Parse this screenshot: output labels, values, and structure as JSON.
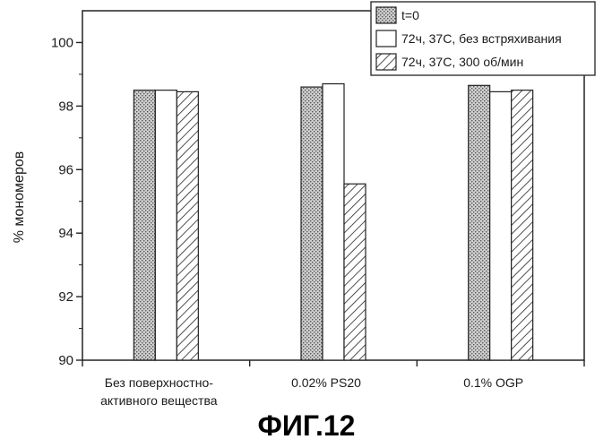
{
  "chart_data": {
    "type": "bar",
    "title": "",
    "xlabel": "",
    "ylabel": "% мономеров",
    "ylim": [
      90,
      101
    ],
    "yticks": [
      90,
      92,
      94,
      96,
      98,
      100
    ],
    "categories": [
      [
        "Без поверхностно-",
        "активного вещества"
      ],
      [
        "0.02% PS20"
      ],
      [
        "0.1% OGP"
      ]
    ],
    "series": [
      {
        "name": "t=0",
        "pattern": "dots",
        "values": [
          98.5,
          98.6,
          98.65
        ]
      },
      {
        "name": "72ч, 37С, без встряхивания",
        "pattern": "empty",
        "values": [
          98.5,
          98.7,
          98.45
        ]
      },
      {
        "name": "72ч, 37С, 300 об/мин",
        "pattern": "hatch",
        "values": [
          98.45,
          95.55,
          98.5
        ]
      }
    ],
    "legend_position": "top-right",
    "grid": false
  },
  "figure": {
    "caption": "ФИГ.12"
  }
}
